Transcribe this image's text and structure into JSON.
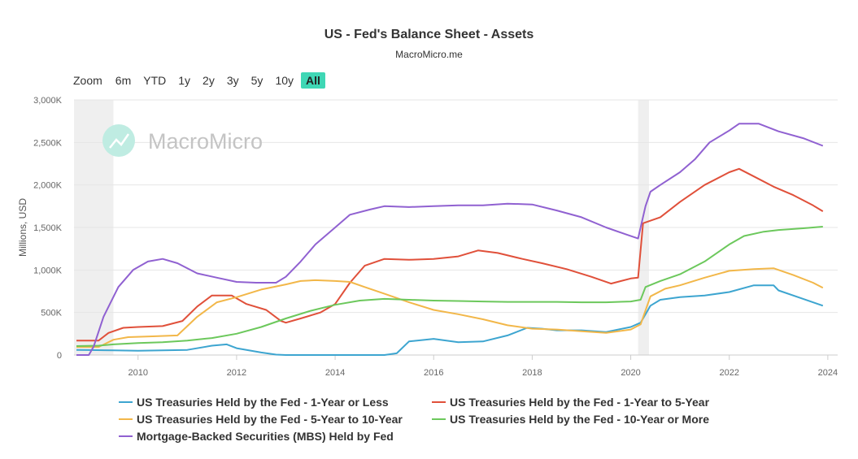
{
  "chart_data": {
    "type": "line",
    "title": "US - Fed's Balance Sheet - Assets",
    "subtitle": "MacroMicro.me",
    "watermark": "MacroMicro",
    "ylabel": "Millions, USD",
    "xlabel": "",
    "ylim": [
      0,
      3000000
    ],
    "xlim": [
      2008.7,
      2024.2
    ],
    "y_ticks": [
      {
        "value": 0,
        "label": "0"
      },
      {
        "value": 500000,
        "label": "500K"
      },
      {
        "value": 1000000,
        "label": "1,000K"
      },
      {
        "value": 1500000,
        "label": "1,500K"
      },
      {
        "value": 2000000,
        "label": "2,000K"
      },
      {
        "value": 2500000,
        "label": "2,500K"
      },
      {
        "value": 3000000,
        "label": "3,000K"
      }
    ],
    "x_ticks": [
      {
        "value": 2010,
        "label": "2010"
      },
      {
        "value": 2012,
        "label": "2012"
      },
      {
        "value": 2014,
        "label": "2014"
      },
      {
        "value": 2016,
        "label": "2016"
      },
      {
        "value": 2018,
        "label": "2018"
      },
      {
        "value": 2020,
        "label": "2020"
      },
      {
        "value": 2022,
        "label": "2022"
      },
      {
        "value": 2024,
        "label": "2024"
      }
    ],
    "recession_bands": [
      [
        2008.7,
        2009.5
      ],
      [
        2020.15,
        2020.37
      ]
    ],
    "grid": true,
    "legend_position": "bottom",
    "series": [
      {
        "name": "US Treasuries Held by the Fed - 1-Year or Less",
        "color": "#3da5d0",
        "points": [
          [
            2008.75,
            60000
          ],
          [
            2009.0,
            58000
          ],
          [
            2009.5,
            55000
          ],
          [
            2010.0,
            50000
          ],
          [
            2010.5,
            55000
          ],
          [
            2011.0,
            60000
          ],
          [
            2011.5,
            110000
          ],
          [
            2011.8,
            125000
          ],
          [
            2012.0,
            80000
          ],
          [
            2012.5,
            30000
          ],
          [
            2012.8,
            5000
          ],
          [
            2013.0,
            0
          ],
          [
            2015.0,
            0
          ],
          [
            2015.25,
            20000
          ],
          [
            2015.5,
            160000
          ],
          [
            2016.0,
            190000
          ],
          [
            2016.5,
            150000
          ],
          [
            2017.0,
            160000
          ],
          [
            2017.5,
            230000
          ],
          [
            2017.9,
            320000
          ],
          [
            2018.2,
            310000
          ],
          [
            2018.5,
            290000
          ],
          [
            2019.0,
            290000
          ],
          [
            2019.5,
            270000
          ],
          [
            2020.0,
            330000
          ],
          [
            2020.2,
            380000
          ],
          [
            2020.4,
            580000
          ],
          [
            2020.6,
            650000
          ],
          [
            2021.0,
            680000
          ],
          [
            2021.5,
            700000
          ],
          [
            2022.0,
            740000
          ],
          [
            2022.5,
            820000
          ],
          [
            2022.9,
            820000
          ],
          [
            2023.0,
            760000
          ],
          [
            2023.5,
            660000
          ],
          [
            2023.9,
            580000
          ]
        ]
      },
      {
        "name": "US Treasuries Held by the Fed - 1-Year to 5-Year",
        "color": "#e0503a",
        "points": [
          [
            2008.75,
            170000
          ],
          [
            2009.2,
            170000
          ],
          [
            2009.4,
            260000
          ],
          [
            2009.7,
            320000
          ],
          [
            2010.0,
            330000
          ],
          [
            2010.5,
            340000
          ],
          [
            2010.9,
            400000
          ],
          [
            2011.2,
            570000
          ],
          [
            2011.5,
            700000
          ],
          [
            2011.9,
            700000
          ],
          [
            2012.2,
            600000
          ],
          [
            2012.6,
            530000
          ],
          [
            2012.9,
            400000
          ],
          [
            2013.0,
            380000
          ],
          [
            2013.3,
            430000
          ],
          [
            2013.7,
            500000
          ],
          [
            2014.0,
            600000
          ],
          [
            2014.3,
            850000
          ],
          [
            2014.6,
            1050000
          ],
          [
            2015.0,
            1130000
          ],
          [
            2015.5,
            1120000
          ],
          [
            2016.0,
            1130000
          ],
          [
            2016.5,
            1160000
          ],
          [
            2016.9,
            1230000
          ],
          [
            2017.3,
            1200000
          ],
          [
            2017.8,
            1130000
          ],
          [
            2018.2,
            1080000
          ],
          [
            2018.7,
            1010000
          ],
          [
            2019.2,
            920000
          ],
          [
            2019.6,
            840000
          ],
          [
            2020.0,
            900000
          ],
          [
            2020.15,
            910000
          ],
          [
            2020.25,
            1550000
          ],
          [
            2020.6,
            1620000
          ],
          [
            2021.0,
            1800000
          ],
          [
            2021.5,
            2000000
          ],
          [
            2022.0,
            2150000
          ],
          [
            2022.2,
            2190000
          ],
          [
            2022.5,
            2100000
          ],
          [
            2022.9,
            1980000
          ],
          [
            2023.3,
            1880000
          ],
          [
            2023.7,
            1760000
          ],
          [
            2023.9,
            1690000
          ]
        ]
      },
      {
        "name": "US Treasuries Held by the Fed - 5-Year to 10-Year",
        "color": "#f2b749",
        "points": [
          [
            2008.75,
            95000
          ],
          [
            2009.2,
            95000
          ],
          [
            2009.5,
            180000
          ],
          [
            2009.8,
            210000
          ],
          [
            2010.3,
            220000
          ],
          [
            2010.8,
            230000
          ],
          [
            2011.2,
            450000
          ],
          [
            2011.6,
            620000
          ],
          [
            2012.0,
            680000
          ],
          [
            2012.5,
            770000
          ],
          [
            2013.0,
            830000
          ],
          [
            2013.3,
            870000
          ],
          [
            2013.6,
            880000
          ],
          [
            2014.0,
            870000
          ],
          [
            2014.3,
            860000
          ],
          [
            2014.6,
            800000
          ],
          [
            2015.0,
            720000
          ],
          [
            2015.5,
            620000
          ],
          [
            2016.0,
            530000
          ],
          [
            2016.5,
            480000
          ],
          [
            2017.0,
            420000
          ],
          [
            2017.5,
            350000
          ],
          [
            2018.0,
            310000
          ],
          [
            2018.5,
            300000
          ],
          [
            2019.0,
            280000
          ],
          [
            2019.5,
            260000
          ],
          [
            2020.0,
            300000
          ],
          [
            2020.2,
            360000
          ],
          [
            2020.4,
            690000
          ],
          [
            2020.7,
            780000
          ],
          [
            2021.0,
            820000
          ],
          [
            2021.5,
            910000
          ],
          [
            2022.0,
            990000
          ],
          [
            2022.5,
            1010000
          ],
          [
            2022.9,
            1020000
          ],
          [
            2023.3,
            940000
          ],
          [
            2023.7,
            850000
          ],
          [
            2023.9,
            790000
          ]
        ]
      },
      {
        "name": "US Treasuries Held by the Fed - 10-Year or More",
        "color": "#6cc85c",
        "points": [
          [
            2008.75,
            105000
          ],
          [
            2009.2,
            110000
          ],
          [
            2009.5,
            125000
          ],
          [
            2010.0,
            140000
          ],
          [
            2010.5,
            150000
          ],
          [
            2011.0,
            170000
          ],
          [
            2011.5,
            200000
          ],
          [
            2012.0,
            250000
          ],
          [
            2012.5,
            330000
          ],
          [
            2013.0,
            430000
          ],
          [
            2013.5,
            520000
          ],
          [
            2014.0,
            590000
          ],
          [
            2014.5,
            640000
          ],
          [
            2015.0,
            660000
          ],
          [
            2015.5,
            650000
          ],
          [
            2016.0,
            640000
          ],
          [
            2016.5,
            635000
          ],
          [
            2017.0,
            630000
          ],
          [
            2017.5,
            625000
          ],
          [
            2018.0,
            625000
          ],
          [
            2018.5,
            625000
          ],
          [
            2019.0,
            620000
          ],
          [
            2019.5,
            620000
          ],
          [
            2020.0,
            630000
          ],
          [
            2020.2,
            650000
          ],
          [
            2020.3,
            800000
          ],
          [
            2020.6,
            870000
          ],
          [
            2021.0,
            950000
          ],
          [
            2021.5,
            1100000
          ],
          [
            2022.0,
            1300000
          ],
          [
            2022.3,
            1400000
          ],
          [
            2022.7,
            1450000
          ],
          [
            2023.0,
            1470000
          ],
          [
            2023.5,
            1490000
          ],
          [
            2023.9,
            1510000
          ]
        ]
      },
      {
        "name": "Mortgage-Backed Securities (MBS) Held by Fed",
        "color": "#9061d1",
        "points": [
          [
            2008.75,
            0
          ],
          [
            2009.0,
            0
          ],
          [
            2009.1,
            100000
          ],
          [
            2009.3,
            450000
          ],
          [
            2009.6,
            800000
          ],
          [
            2009.9,
            1000000
          ],
          [
            2010.2,
            1100000
          ],
          [
            2010.5,
            1130000
          ],
          [
            2010.8,
            1080000
          ],
          [
            2011.2,
            960000
          ],
          [
            2011.6,
            910000
          ],
          [
            2012.0,
            860000
          ],
          [
            2012.4,
            850000
          ],
          [
            2012.8,
            850000
          ],
          [
            2013.0,
            920000
          ],
          [
            2013.3,
            1100000
          ],
          [
            2013.6,
            1300000
          ],
          [
            2014.0,
            1500000
          ],
          [
            2014.3,
            1650000
          ],
          [
            2014.7,
            1710000
          ],
          [
            2015.0,
            1750000
          ],
          [
            2015.5,
            1740000
          ],
          [
            2016.0,
            1750000
          ],
          [
            2016.5,
            1760000
          ],
          [
            2017.0,
            1760000
          ],
          [
            2017.5,
            1780000
          ],
          [
            2018.0,
            1770000
          ],
          [
            2018.5,
            1700000
          ],
          [
            2019.0,
            1620000
          ],
          [
            2019.5,
            1500000
          ],
          [
            2019.9,
            1420000
          ],
          [
            2020.15,
            1370000
          ],
          [
            2020.3,
            1750000
          ],
          [
            2020.4,
            1920000
          ],
          [
            2020.6,
            2000000
          ],
          [
            2021.0,
            2150000
          ],
          [
            2021.3,
            2300000
          ],
          [
            2021.6,
            2500000
          ],
          [
            2022.0,
            2640000
          ],
          [
            2022.2,
            2720000
          ],
          [
            2022.6,
            2720000
          ],
          [
            2023.0,
            2630000
          ],
          [
            2023.5,
            2550000
          ],
          [
            2023.9,
            2460000
          ]
        ]
      }
    ]
  },
  "zoom": {
    "label": "Zoom",
    "buttons": [
      "6m",
      "YTD",
      "1y",
      "2y",
      "3y",
      "5y",
      "10y",
      "All"
    ],
    "active": "All"
  }
}
